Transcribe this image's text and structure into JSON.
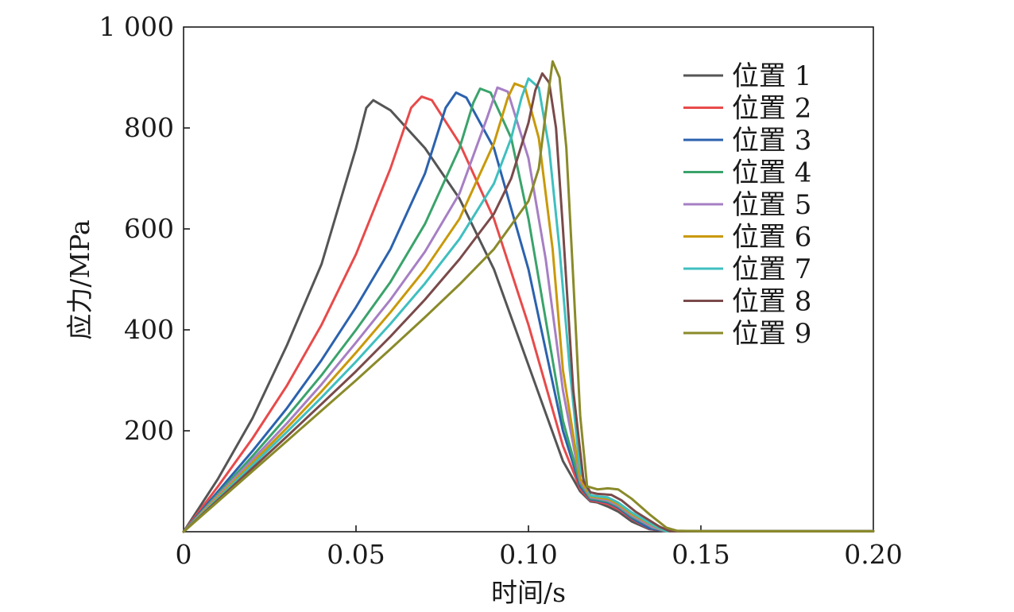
{
  "chart_data": {
    "type": "line",
    "title": "",
    "xlabel": "时间/s",
    "ylabel": "应力/MPa",
    "xlim": [
      0,
      0.2
    ],
    "ylim": [
      0,
      1000
    ],
    "xticks": [
      0,
      0.05,
      0.1,
      0.15,
      0.2
    ],
    "xtick_labels": [
      "0",
      "0.05",
      "0.10",
      "0.15",
      "0.20"
    ],
    "yticks": [
      200,
      400,
      600,
      800,
      1000
    ],
    "ytick_labels": [
      "200",
      "400",
      "600",
      "800",
      "1 000"
    ],
    "grid": false,
    "legend": "top-right",
    "series": [
      {
        "name": "位置 1",
        "color": "#555555",
        "x": [
          0,
          0.01,
          0.02,
          0.03,
          0.04,
          0.05,
          0.053,
          0.055,
          0.06,
          0.07,
          0.08,
          0.09,
          0.1,
          0.11,
          0.115,
          0.118,
          0.12,
          0.123,
          0.126,
          0.13,
          0.135,
          0.14,
          0.2
        ],
        "y": [
          0,
          105,
          225,
          370,
          530,
          760,
          840,
          855,
          835,
          760,
          660,
          520,
          330,
          140,
          80,
          60,
          58,
          50,
          40,
          20,
          5,
          1,
          1
        ]
      },
      {
        "name": "位置 2",
        "color": "#e84a4a",
        "x": [
          0,
          0.01,
          0.02,
          0.03,
          0.04,
          0.05,
          0.06,
          0.066,
          0.069,
          0.072,
          0.08,
          0.09,
          0.1,
          0.11,
          0.115,
          0.118,
          0.12,
          0.123,
          0.126,
          0.13,
          0.135,
          0.14,
          0.2
        ],
        "y": [
          0,
          90,
          185,
          290,
          410,
          550,
          720,
          840,
          862,
          855,
          770,
          620,
          410,
          170,
          85,
          62,
          60,
          55,
          45,
          25,
          6,
          1,
          1
        ]
      },
      {
        "name": "位置 3",
        "color": "#2b62ae",
        "x": [
          0,
          0.01,
          0.02,
          0.03,
          0.04,
          0.05,
          0.06,
          0.07,
          0.076,
          0.079,
          0.082,
          0.09,
          0.1,
          0.11,
          0.115,
          0.118,
          0.12,
          0.123,
          0.126,
          0.13,
          0.135,
          0.14,
          0.2
        ],
        "y": [
          0,
          80,
          160,
          245,
          340,
          445,
          560,
          710,
          840,
          870,
          860,
          760,
          520,
          200,
          90,
          64,
          62,
          58,
          48,
          27,
          7,
          1,
          1
        ]
      },
      {
        "name": "位置 4",
        "color": "#3aa36b",
        "x": [
          0,
          0.01,
          0.02,
          0.03,
          0.04,
          0.05,
          0.06,
          0.07,
          0.08,
          0.084,
          0.086,
          0.089,
          0.095,
          0.1,
          0.105,
          0.11,
          0.115,
          0.118,
          0.12,
          0.123,
          0.126,
          0.13,
          0.136,
          0.14,
          0.2
        ],
        "y": [
          0,
          75,
          150,
          228,
          310,
          400,
          495,
          610,
          760,
          850,
          878,
          870,
          780,
          620,
          420,
          220,
          95,
          66,
          64,
          60,
          50,
          30,
          8,
          1,
          1
        ]
      },
      {
        "name": "位置 5",
        "color": "#a67fc4",
        "x": [
          0,
          0.01,
          0.02,
          0.03,
          0.04,
          0.05,
          0.06,
          0.07,
          0.08,
          0.088,
          0.091,
          0.094,
          0.1,
          0.105,
          0.11,
          0.115,
          0.118,
          0.12,
          0.123,
          0.126,
          0.13,
          0.136,
          0.14,
          0.2
        ],
        "y": [
          0,
          72,
          143,
          215,
          292,
          375,
          460,
          555,
          670,
          820,
          880,
          872,
          740,
          540,
          280,
          100,
          68,
          66,
          62,
          52,
          32,
          9,
          1,
          1
        ]
      },
      {
        "name": "位置 6",
        "color": "#c9990a",
        "x": [
          0,
          0.01,
          0.02,
          0.03,
          0.04,
          0.05,
          0.06,
          0.07,
          0.08,
          0.09,
          0.094,
          0.096,
          0.099,
          0.103,
          0.107,
          0.11,
          0.115,
          0.118,
          0.12,
          0.123,
          0.126,
          0.13,
          0.137,
          0.14,
          0.2
        ],
        "y": [
          0,
          69,
          137,
          206,
          278,
          355,
          435,
          520,
          620,
          770,
          860,
          888,
          880,
          780,
          560,
          320,
          105,
          70,
          68,
          65,
          55,
          35,
          9,
          1,
          1
        ]
      },
      {
        "name": "位置 7",
        "color": "#3fbfbf",
        "x": [
          0,
          0.01,
          0.02,
          0.03,
          0.04,
          0.05,
          0.06,
          0.07,
          0.08,
          0.09,
          0.095,
          0.098,
          0.1,
          0.103,
          0.106,
          0.109,
          0.112,
          0.115,
          0.118,
          0.12,
          0.123,
          0.126,
          0.13,
          0.137,
          0.14,
          0.2
        ],
        "y": [
          0,
          66,
          132,
          198,
          266,
          337,
          412,
          492,
          580,
          690,
          780,
          860,
          898,
          880,
          760,
          560,
          320,
          120,
          72,
          70,
          68,
          58,
          38,
          10,
          1,
          1
        ]
      },
      {
        "name": "位置 8",
        "color": "#7a4a4a",
        "x": [
          0,
          0.01,
          0.02,
          0.03,
          0.04,
          0.05,
          0.06,
          0.07,
          0.08,
          0.09,
          0.095,
          0.1,
          0.102,
          0.104,
          0.106,
          0.108,
          0.11,
          0.113,
          0.116,
          0.118,
          0.12,
          0.124,
          0.127,
          0.131,
          0.138,
          0.141,
          0.2
        ],
        "y": [
          0,
          63,
          126,
          189,
          253,
          318,
          387,
          460,
          540,
          630,
          700,
          810,
          875,
          908,
          890,
          800,
          600,
          280,
          100,
          78,
          75,
          73,
          62,
          40,
          10,
          1,
          1
        ]
      },
      {
        "name": "位置 9",
        "color": "#8a8a2a",
        "x": [
          0,
          0.01,
          0.02,
          0.03,
          0.04,
          0.05,
          0.06,
          0.07,
          0.08,
          0.09,
          0.1,
          0.103,
          0.105,
          0.107,
          0.109,
          0.111,
          0.113,
          0.115,
          0.117,
          0.12,
          0.123,
          0.126,
          0.13,
          0.135,
          0.14,
          0.143,
          0.15,
          0.2
        ],
        "y": [
          0,
          60,
          120,
          180,
          240,
          300,
          362,
          425,
          490,
          560,
          655,
          720,
          830,
          932,
          900,
          760,
          500,
          230,
          90,
          84,
          86,
          84,
          65,
          35,
          8,
          2,
          1,
          1
        ]
      }
    ]
  }
}
